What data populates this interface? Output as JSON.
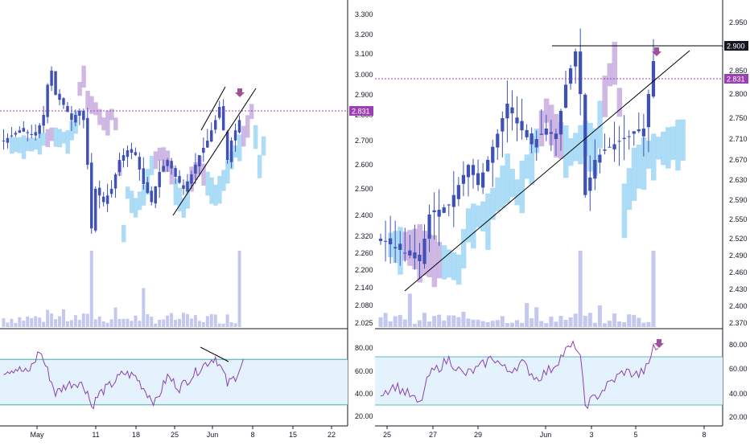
{
  "colors": {
    "candle": "#3f51b5",
    "cloud_bull": "#9fd6f5",
    "cloud_bear": "#c8abe0",
    "volume": "#c4c8ee",
    "rsi_line": "#8e3fb0",
    "rsi_band": "#e3f2fd",
    "rsi_band_edge": "#26a69a",
    "price_line": "#9b40b0",
    "price_label_bg": "#9b40b0",
    "level_label_bg": "#131722",
    "trendline": "#000000",
    "arrow": "#a0519a"
  },
  "chart_data": [
    {
      "type": "candlestick",
      "panel": "left",
      "indicators": [
        "Ichimoku cloud",
        "Volume",
        "RSI"
      ],
      "price_axis_ticks": [
        "3.300",
        "3.200",
        "3.100",
        "3.000",
        "2.900",
        "2.800",
        "2.700",
        "2.600",
        "2.500",
        "2.400",
        "2.320",
        "2.260",
        "2.200",
        "2.140",
        "2.080",
        "2.025"
      ],
      "price_label": "2.831",
      "x_ticks": [
        "May",
        "11",
        "18",
        "25",
        "Jun",
        "8",
        "15",
        "22"
      ],
      "rsi_ticks": [
        "80.00",
        "60.00",
        "40.00",
        "20.00"
      ],
      "rsi_band": [
        30,
        70
      ],
      "close_path": [
        {
          "x": 0,
          "y": 2.7
        },
        {
          "x": 4,
          "y": 2.74
        },
        {
          "x": 8,
          "y": 2.72
        },
        {
          "x": 10,
          "y": 2.8
        },
        {
          "x": 11,
          "y": 2.95
        },
        {
          "x": 12,
          "y": 3.02
        },
        {
          "x": 13,
          "y": 2.9
        },
        {
          "x": 15,
          "y": 2.85
        },
        {
          "x": 17,
          "y": 2.78
        },
        {
          "x": 19,
          "y": 2.82
        },
        {
          "x": 20,
          "y": 2.78
        },
        {
          "x": 21,
          "y": 2.6
        },
        {
          "x": 22,
          "y": 2.35
        },
        {
          "x": 23,
          "y": 2.5
        },
        {
          "x": 25,
          "y": 2.45
        },
        {
          "x": 27,
          "y": 2.5
        },
        {
          "x": 29,
          "y": 2.62
        },
        {
          "x": 31,
          "y": 2.66
        },
        {
          "x": 33,
          "y": 2.64
        },
        {
          "x": 35,
          "y": 2.52
        },
        {
          "x": 37,
          "y": 2.45
        },
        {
          "x": 39,
          "y": 2.57
        },
        {
          "x": 41,
          "y": 2.62
        },
        {
          "x": 43,
          "y": 2.55
        },
        {
          "x": 45,
          "y": 2.5
        },
        {
          "x": 47,
          "y": 2.56
        },
        {
          "x": 49,
          "y": 2.64
        },
        {
          "x": 51,
          "y": 2.7
        },
        {
          "x": 53,
          "y": 2.78
        },
        {
          "x": 54,
          "y": 2.84
        },
        {
          "x": 55,
          "y": 2.74
        },
        {
          "x": 56,
          "y": 2.62
        },
        {
          "x": 57,
          "y": 2.7
        },
        {
          "x": 58,
          "y": 2.74
        },
        {
          "x": 59,
          "y": 2.78
        },
        {
          "x": 60,
          "y": 2.83
        }
      ],
      "volume_spikes": [
        {
          "x": 22,
          "v": "high"
        },
        {
          "x": 59,
          "v": "high"
        }
      ],
      "rsi_path": [
        {
          "x": 0,
          "y": 60
        },
        {
          "x": 3,
          "y": 62
        },
        {
          "x": 6,
          "y": 58
        },
        {
          "x": 8,
          "y": 70
        },
        {
          "x": 9,
          "y": 78
        },
        {
          "x": 11,
          "y": 60
        },
        {
          "x": 13,
          "y": 40
        },
        {
          "x": 16,
          "y": 48
        },
        {
          "x": 19,
          "y": 50
        },
        {
          "x": 21,
          "y": 42
        },
        {
          "x": 22,
          "y": 28
        },
        {
          "x": 24,
          "y": 40
        },
        {
          "x": 27,
          "y": 48
        },
        {
          "x": 30,
          "y": 58
        },
        {
          "x": 33,
          "y": 55
        },
        {
          "x": 36,
          "y": 40
        },
        {
          "x": 38,
          "y": 32
        },
        {
          "x": 41,
          "y": 55
        },
        {
          "x": 44,
          "y": 45
        },
        {
          "x": 47,
          "y": 55
        },
        {
          "x": 50,
          "y": 65
        },
        {
          "x": 53,
          "y": 72
        },
        {
          "x": 55,
          "y": 58
        },
        {
          "x": 56,
          "y": 48
        },
        {
          "x": 58,
          "y": 55
        },
        {
          "x": 60,
          "y": 68
        }
      ]
    },
    {
      "type": "candlestick",
      "panel": "right",
      "indicators": [
        "Ichimoku cloud",
        "Volume",
        "RSI"
      ],
      "price_axis_ticks": [
        "2.950",
        "2.850",
        "2.800",
        "2.750",
        "2.710",
        "2.670",
        "2.630",
        "2.590",
        "2.550",
        "2.520",
        "2.490",
        "2.460",
        "2.430",
        "2.400",
        "2.370"
      ],
      "price_label": "2.831",
      "level_label": "2.900",
      "x_ticks": [
        "25",
        "27",
        "29",
        "Jun",
        "3",
        "5",
        "8"
      ],
      "rsi_ticks": [
        "80.00",
        "60.00",
        "40.00",
        "20.00"
      ],
      "rsi_band": [
        30,
        70
      ],
      "close_path": [
        {
          "x": 0,
          "y": 2.52
        },
        {
          "x": 4,
          "y": 2.5
        },
        {
          "x": 8,
          "y": 2.48
        },
        {
          "x": 10,
          "y": 2.56
        },
        {
          "x": 14,
          "y": 2.58
        },
        {
          "x": 18,
          "y": 2.66
        },
        {
          "x": 20,
          "y": 2.62
        },
        {
          "x": 24,
          "y": 2.72
        },
        {
          "x": 26,
          "y": 2.78
        },
        {
          "x": 28,
          "y": 2.74
        },
        {
          "x": 31,
          "y": 2.7
        },
        {
          "x": 34,
          "y": 2.73
        },
        {
          "x": 36,
          "y": 2.71
        },
        {
          "x": 38,
          "y": 2.82
        },
        {
          "x": 40,
          "y": 2.89
        },
        {
          "x": 41,
          "y": 2.8
        },
        {
          "x": 42,
          "y": 2.6
        },
        {
          "x": 44,
          "y": 2.67
        },
        {
          "x": 46,
          "y": 2.69
        },
        {
          "x": 48,
          "y": 2.7
        },
        {
          "x": 50,
          "y": 2.71
        },
        {
          "x": 52,
          "y": 2.72
        },
        {
          "x": 54,
          "y": 2.73
        },
        {
          "x": 55,
          "y": 2.8
        },
        {
          "x": 56,
          "y": 2.87
        },
        {
          "x": 57,
          "y": 2.83
        }
      ],
      "volume_spikes": [
        {
          "x": 41,
          "v": "high"
        },
        {
          "x": 56,
          "v": "high"
        }
      ],
      "rsi_path": [
        {
          "x": 0,
          "y": 40
        },
        {
          "x": 3,
          "y": 46
        },
        {
          "x": 6,
          "y": 38
        },
        {
          "x": 8,
          "y": 30
        },
        {
          "x": 10,
          "y": 55
        },
        {
          "x": 14,
          "y": 68
        },
        {
          "x": 17,
          "y": 55
        },
        {
          "x": 20,
          "y": 60
        },
        {
          "x": 23,
          "y": 70
        },
        {
          "x": 26,
          "y": 58
        },
        {
          "x": 29,
          "y": 65
        },
        {
          "x": 32,
          "y": 52
        },
        {
          "x": 35,
          "y": 60
        },
        {
          "x": 38,
          "y": 75
        },
        {
          "x": 40,
          "y": 80
        },
        {
          "x": 41,
          "y": 68
        },
        {
          "x": 42,
          "y": 30
        },
        {
          "x": 44,
          "y": 36
        },
        {
          "x": 47,
          "y": 48
        },
        {
          "x": 50,
          "y": 58
        },
        {
          "x": 53,
          "y": 55
        },
        {
          "x": 55,
          "y": 62
        },
        {
          "x": 56,
          "y": 80
        },
        {
          "x": 57,
          "y": 74
        }
      ]
    }
  ]
}
